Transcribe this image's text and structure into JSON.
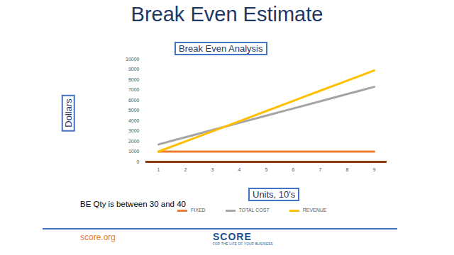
{
  "header": {
    "title": "Break Even Estimate"
  },
  "chart_data": {
    "type": "line",
    "title": "Break Even Analysis",
    "x_label": "Units, 10's",
    "y_label": "Dollars",
    "categories": [
      "1",
      "2",
      "3",
      "4",
      "5",
      "6",
      "7",
      "8",
      "9"
    ],
    "series": [
      {
        "name": "FIXED",
        "color": "#ed7d31",
        "values": [
          1000,
          1000,
          1000,
          1000,
          1000,
          1000,
          1000,
          1000,
          1000
        ]
      },
      {
        "name": "TOTAL COST",
        "color": "#a5a5a5",
        "values": [
          1700,
          2400,
          3100,
          3800,
          4500,
          5200,
          5900,
          6600,
          7300
        ]
      },
      {
        "name": "REVENUE",
        "color": "#ffc000",
        "values": [
          1000,
          1990,
          2980,
          3960,
          4950,
          5940,
          6930,
          7910,
          8900
        ]
      }
    ],
    "ylim": [
      0,
      10000
    ],
    "yticks": [
      0,
      1000,
      2000,
      3000,
      4000,
      5000,
      6000,
      7000,
      8000,
      9000,
      10000
    ],
    "grid": false,
    "legend": "bottom",
    "annotations": [
      "BE Qty is between 30 and 40"
    ]
  },
  "footer": {
    "url": "score.org",
    "logo": "SCORE",
    "tagline": "FOR THE LIFE OF YOUR BUSINESS"
  }
}
